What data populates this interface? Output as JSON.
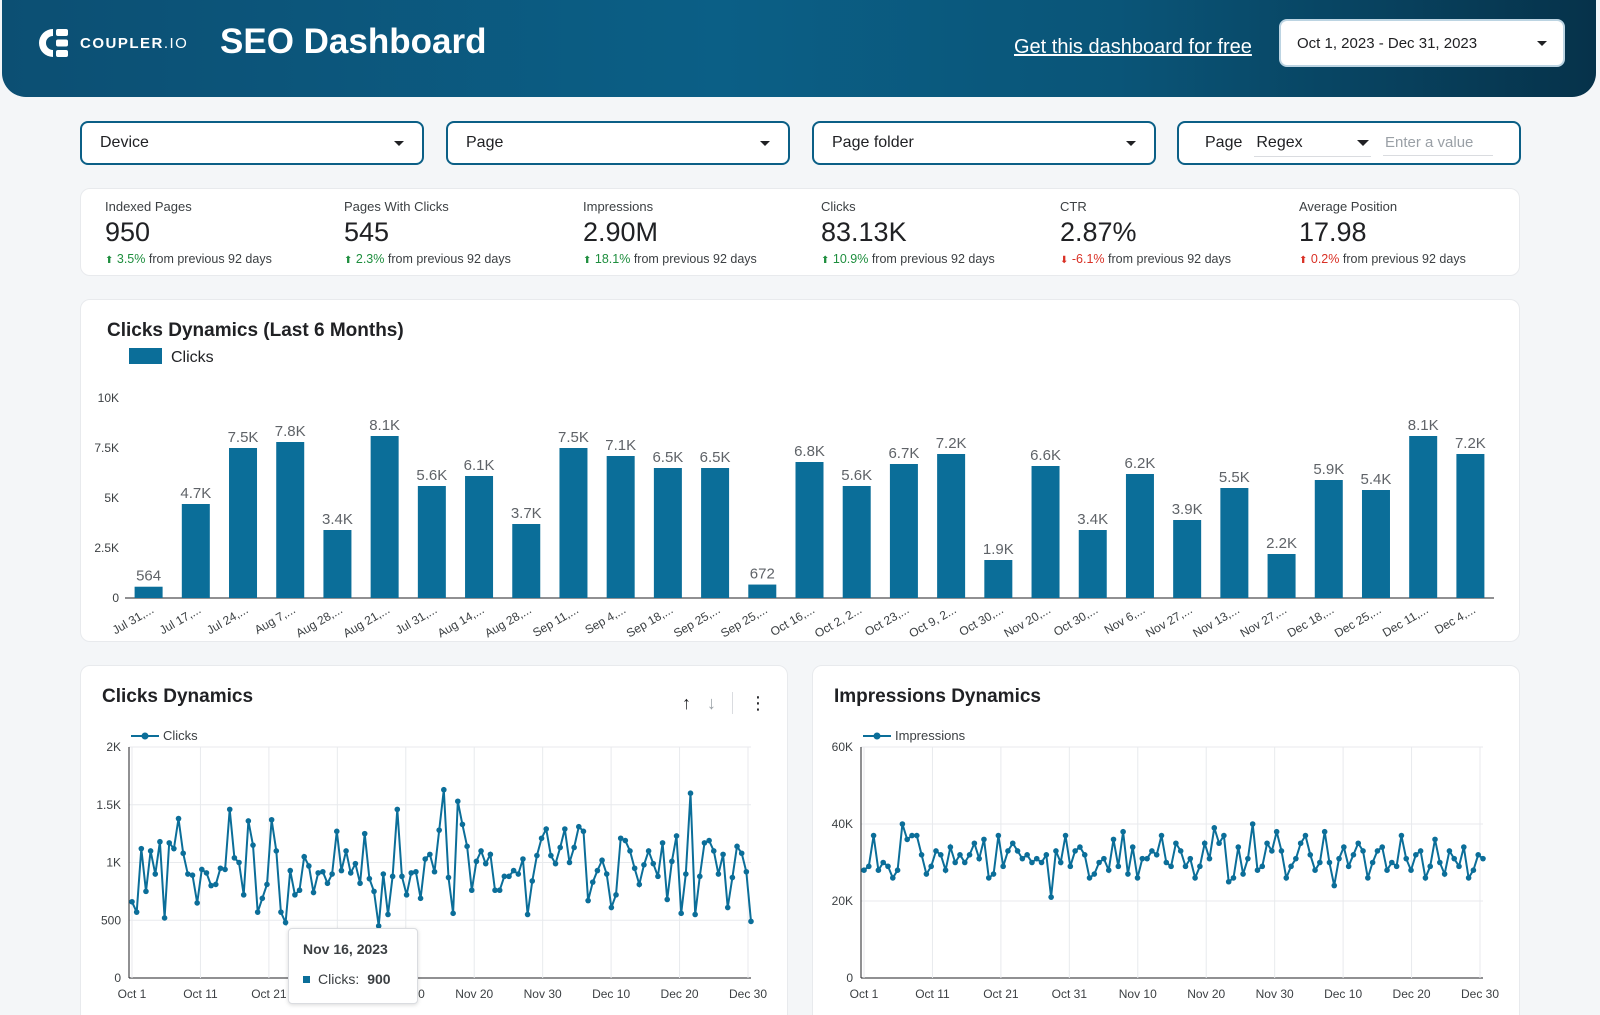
{
  "header": {
    "logo_text": "COUPLER",
    "logo_suffix": ".IO",
    "title": "SEO Dashboard",
    "free_link": "Get this dashboard for free",
    "date_range": "Oct 1, 2023 - Dec 31, 2023"
  },
  "filters": {
    "device": "Device",
    "page": "Page",
    "page_folder": "Page folder",
    "regex_label": "Page",
    "regex_mode": "Regex",
    "regex_placeholder": "Enter a value"
  },
  "kpis": [
    {
      "label": "Indexed Pages",
      "value": "950",
      "change": "3.5%",
      "suffix": "from previous 92 days",
      "direction": "up",
      "tone": "pos"
    },
    {
      "label": "Pages With Clicks",
      "value": "545",
      "change": "2.3%",
      "suffix": "from previous 92 days",
      "direction": "up",
      "tone": "pos"
    },
    {
      "label": "Impressions",
      "value": "2.90M",
      "change": "18.1%",
      "suffix": "from previous 92 days",
      "direction": "up",
      "tone": "pos"
    },
    {
      "label": "Clicks",
      "value": "83.13K",
      "change": "10.9%",
      "suffix": "from previous 92 days",
      "direction": "up",
      "tone": "pos"
    },
    {
      "label": "CTR",
      "value": "2.87%",
      "change": "-6.1%",
      "suffix": "from previous 92 days",
      "direction": "down",
      "tone": "neg"
    },
    {
      "label": "Average Position",
      "value": "17.98",
      "change": "0.2%",
      "suffix": "from previous 92 days",
      "direction": "up",
      "tone": "neg"
    }
  ],
  "colors": {
    "primary": "#0b6e99",
    "positive": "#1e8e3e",
    "negative": "#d93025"
  },
  "chart_data": [
    {
      "type": "bar",
      "title": "Clicks Dynamics (Last 6 Months)",
      "legend": "Clicks",
      "categories": [
        "Jul 31,...",
        "Jul 17,...",
        "Jul 24,...",
        "Aug 7,...",
        "Aug 28,...",
        "Aug 21,...",
        "Jul 31,...",
        "Aug 14,...",
        "Aug 28,...",
        "Sep 11,...",
        "Sep 4,...",
        "Sep 18,...",
        "Sep 25,...",
        "Sep 25,...",
        "Oct 16,...",
        "Oct 2, 2...",
        "Oct 23,...",
        "Oct 9, 2...",
        "Oct 30,...",
        "Nov 20,...",
        "Oct 30,...",
        "Nov 6,...",
        "Nov 27,...",
        "Nov 13,...",
        "Nov 27,...",
        "Dec 18,...",
        "Dec 25,...",
        "Dec 11,...",
        "Dec 4,..."
      ],
      "values": [
        564,
        4700,
        7500,
        7800,
        3400,
        8100,
        5600,
        6100,
        3700,
        7500,
        7100,
        6500,
        6500,
        672,
        6800,
        5600,
        6700,
        7200,
        1900,
        6600,
        3400,
        6200,
        3900,
        5500,
        2200,
        5900,
        5400,
        8100,
        7200
      ],
      "labels": [
        "564",
        "4.7K",
        "7.5K",
        "7.8K",
        "3.4K",
        "8.1K",
        "5.6K",
        "6.1K",
        "3.7K",
        "7.5K",
        "7.1K",
        "6.5K",
        "6.5K",
        "672",
        "6.8K",
        "5.6K",
        "6.7K",
        "7.2K",
        "1.9K",
        "6.6K",
        "3.4K",
        "6.2K",
        "3.9K",
        "5.5K",
        "2.2K",
        "5.9K",
        "5.4K",
        "8.1K",
        "7.2K"
      ],
      "ylim": [
        0,
        10000
      ],
      "yticks": [
        "0",
        "2.5K",
        "5K",
        "7.5K",
        "10K"
      ]
    },
    {
      "type": "line",
      "title": "Clicks Dynamics",
      "legend": "Clicks",
      "x_range": [
        "Oct 1, 2023",
        "Dec 31, 2023"
      ],
      "xticks": [
        "Oct 1",
        "Oct 11",
        "Oct 21",
        "Oct 31",
        "Nov 10",
        "Nov 20",
        "Nov 30",
        "Dec 10",
        "Dec 20",
        "Dec 30"
      ],
      "yticks": [
        "0",
        "500",
        "1K",
        "1.5K",
        "2K"
      ],
      "ylim": [
        0,
        2000
      ],
      "values": [
        660,
        570,
        1120,
        750,
        1100,
        900,
        1180,
        520,
        1170,
        1120,
        1380,
        1080,
        900,
        890,
        650,
        940,
        910,
        800,
        810,
        950,
        940,
        1460,
        1040,
        1000,
        720,
        1360,
        1150,
        570,
        690,
        810,
        1370,
        1100,
        570,
        480,
        930,
        720,
        760,
        1050,
        970,
        740,
        910,
        920,
        820,
        900,
        1270,
        930,
        1100,
        910,
        990,
        820,
        1250,
        860,
        750,
        450,
        900,
        550,
        880,
        1460,
        880,
        720,
        910,
        920,
        690,
        1030,
        1070,
        920,
        1280,
        1630,
        870,
        560,
        1530,
        1330,
        1140,
        760,
        1010,
        1100,
        990,
        1070,
        760,
        760,
        880,
        880,
        930,
        900,
        1030,
        550,
        840,
        1060,
        1210,
        1290,
        1060,
        990,
        1130,
        1290,
        1000,
        1130,
        1310,
        1270,
        670,
        830,
        930,
        1020,
        900,
        610,
        720,
        1210,
        1190,
        1100,
        950,
        810,
        980,
        1100,
        990,
        880,
        1170,
        680,
        1010,
        1230,
        560,
        900,
        1600,
        550,
        880,
        1170,
        1190,
        1100,
        900,
        1070,
        610,
        870,
        1140,
        1080,
        920,
        490
      ],
      "tooltip": {
        "date": "Nov 16, 2023",
        "label": "Clicks:",
        "value": "900"
      }
    },
    {
      "type": "line",
      "title": "Impressions Dynamics",
      "legend": "Impressions",
      "x_range": [
        "Oct 1, 2023",
        "Dec 31, 2023"
      ],
      "xticks": [
        "Oct 1",
        "Oct 11",
        "Oct 21",
        "Oct 31",
        "Nov 10",
        "Nov 20",
        "Nov 30",
        "Dec 10",
        "Dec 20",
        "Dec 30"
      ],
      "yticks": [
        "0",
        "20K",
        "40K",
        "60K"
      ],
      "ylim": [
        0,
        60000
      ],
      "values": [
        28000,
        29000,
        37000,
        28000,
        30000,
        29000,
        26000,
        28000,
        40000,
        36000,
        37000,
        37000,
        32000,
        27000,
        29000,
        33000,
        32000,
        28000,
        34000,
        30000,
        32000,
        30000,
        32000,
        35000,
        31000,
        36000,
        26000,
        27000,
        37000,
        29000,
        33000,
        35000,
        33000,
        31000,
        32000,
        30000,
        31000,
        30000,
        32000,
        21000,
        33000,
        30000,
        37000,
        29000,
        33000,
        34000,
        32000,
        26000,
        27000,
        30000,
        31000,
        28000,
        36000,
        29000,
        38000,
        27000,
        34000,
        26000,
        31000,
        31000,
        33000,
        32000,
        37000,
        30000,
        29000,
        35000,
        33000,
        29000,
        31000,
        26000,
        29000,
        35000,
        31000,
        39000,
        35000,
        37000,
        25000,
        26000,
        34000,
        27000,
        31000,
        40000,
        28000,
        29000,
        35000,
        33000,
        38000,
        33000,
        26000,
        29000,
        31000,
        35000,
        37000,
        32000,
        28000,
        30000,
        38000,
        30000,
        24000,
        31000,
        34000,
        29000,
        32000,
        35000,
        33000,
        26000,
        30000,
        33000,
        34000,
        28000,
        30000,
        29000,
        37000,
        31000,
        28000,
        32000,
        33000,
        26000,
        29000,
        36000,
        30000,
        27000,
        33000,
        31000,
        29000,
        34000,
        26000,
        28000,
        32000,
        31000
      ]
    }
  ]
}
